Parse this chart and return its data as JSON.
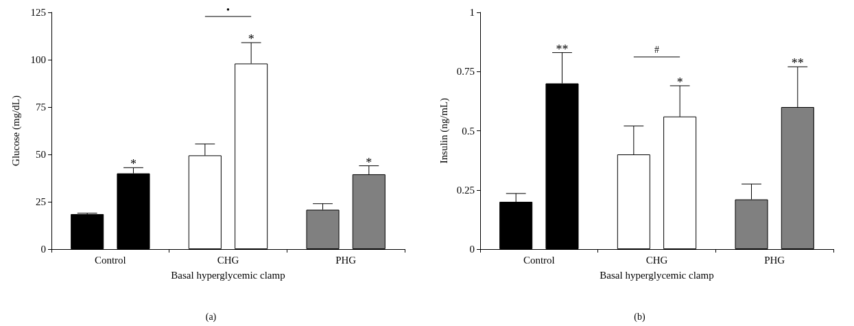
{
  "chart_data": [
    {
      "type": "bar",
      "title": "(a)",
      "xlabel": "Basal hyperglycemic clamp",
      "ylabel": "Glucose (mg/dL)",
      "categories": [
        "Control",
        "CHG",
        "PHG"
      ],
      "ylim": [
        0,
        125
      ],
      "yticks": [
        0,
        25,
        50,
        75,
        100,
        125
      ],
      "series": [
        {
          "colors": [
            "#000000",
            "#ffffff",
            "#808080"
          ],
          "values": [
            18.5,
            49.5,
            20.8
          ],
          "errors": [
            [
              18.5,
              19
            ],
            [
              49.5,
              55.5
            ],
            [
              20.8,
              24
            ]
          ]
        },
        {
          "colors": [
            "#000000",
            "#ffffff",
            "#808080"
          ],
          "values": [
            40,
            98,
            39.5
          ],
          "errors": [
            [
              40,
              43
            ],
            [
              98,
              109
            ],
            [
              39.5,
              44
            ]
          ],
          "value_labels": [
            "*",
            "*",
            "*"
          ]
        }
      ],
      "annotations": [
        "•"
      ]
    },
    {
      "type": "bar",
      "title": "(b)",
      "xlabel": "Basal hyperglycemic clamp",
      "ylabel": "Insulin (ng/mL)",
      "categories": [
        "Control",
        "CHG",
        "PHG"
      ],
      "ylim": [
        0,
        1
      ],
      "yticks": [
        0,
        0.25,
        0.5,
        0.75,
        1
      ],
      "series": [
        {
          "colors": [
            "#000000",
            "#ffffff",
            "#808080"
          ],
          "values": [
            0.2,
            0.4,
            0.21
          ],
          "errors": [
            [
              0.2,
              0.235
            ],
            [
              0.4,
              0.52
            ],
            [
              0.21,
              0.275
            ]
          ]
        },
        {
          "colors": [
            "#000000",
            "#ffffff",
            "#808080"
          ],
          "values": [
            0.7,
            0.56,
            0.6
          ],
          "errors": [
            [
              0.7,
              0.83
            ],
            [
              0.56,
              0.69
            ],
            [
              0.6,
              0.77
            ]
          ],
          "value_labels": [
            "**",
            "*",
            "**"
          ]
        }
      ],
      "annotations": [
        "#"
      ]
    }
  ]
}
